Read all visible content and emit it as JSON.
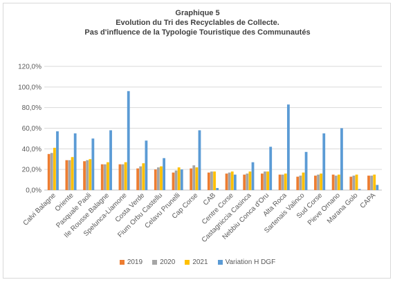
{
  "chart_data": {
    "type": "bar",
    "title": "Graphique 5",
    "subtitle_lines": [
      "Evolution du Tri des Recyclables de Collecte.",
      "Pas d'influence de la Typologie Touristique des Communautés"
    ],
    "categories": [
      "Calvi Balagne",
      "Oriente",
      "Pasquale Paoli",
      "Ile Rousse Balagne",
      "Spelunca-Liamone",
      "Costa Verde",
      "Fium Orbu Castellu",
      "Celavu Prunelli",
      "Cap Corse",
      "CAB",
      "Centre Corse",
      "Castagniccia Casinca",
      "Nebbiu Conca d'Oru",
      "Alta Roca",
      "Sartenais Valinco",
      "Sud Corse",
      "Pieve Ornano",
      "Marana Golo",
      "CAPA"
    ],
    "series": [
      {
        "name": "2019",
        "color": "#ed7d31",
        "values": [
          35,
          29,
          28,
          25,
          25,
          21,
          20,
          17,
          21,
          17,
          16,
          15,
          16,
          15,
          13,
          14,
          15,
          13,
          14
        ]
      },
      {
        "name": "2020",
        "color": "#a5a5a5",
        "values": [
          36,
          29,
          29,
          25,
          25,
          23,
          22,
          19,
          24,
          18,
          17,
          16,
          18,
          15,
          14,
          15,
          14,
          14,
          14
        ]
      },
      {
        "name": "2021",
        "color": "#ffc000",
        "values": [
          41,
          32,
          30,
          27,
          27,
          26,
          23,
          22,
          22,
          18,
          18,
          18,
          18,
          16,
          17,
          16,
          15,
          15,
          15
        ]
      },
      {
        "name": "Variation H DGF",
        "color": "#5b9bd5",
        "values": [
          57,
          55,
          50,
          58,
          96,
          48,
          31,
          20,
          58,
          2,
          15,
          27,
          42,
          83,
          37,
          55,
          60,
          1,
          5
        ]
      }
    ],
    "ylim": [
      0,
      120
    ],
    "yticks": [
      "0,0%",
      "20,0%",
      "40,0%",
      "60,0%",
      "80,0%",
      "100,0%",
      "120,0%"
    ],
    "ytick_values": [
      0,
      20,
      40,
      60,
      80,
      100,
      120
    ],
    "grid": true,
    "legend_position": "bottom"
  }
}
